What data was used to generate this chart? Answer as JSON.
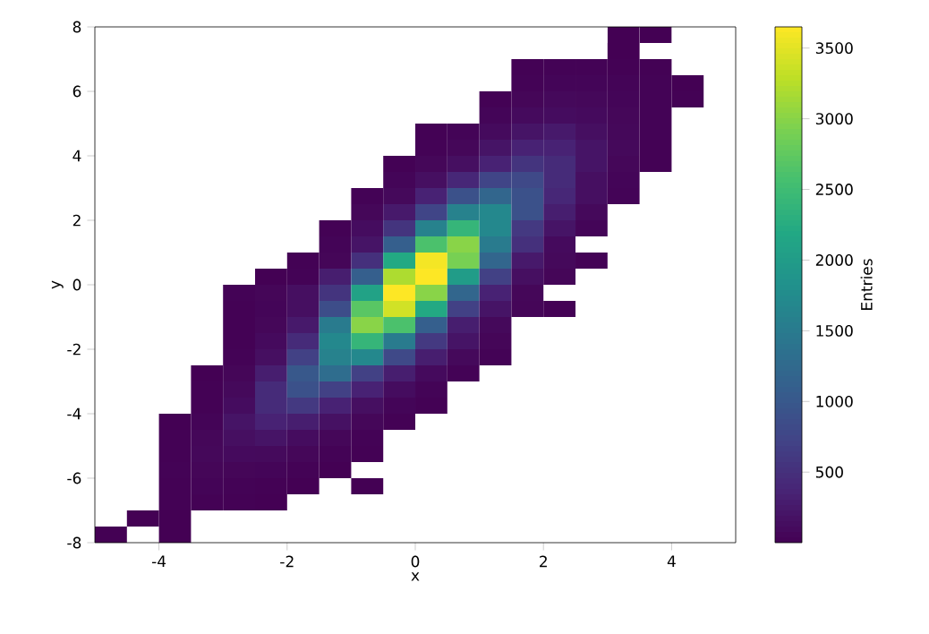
{
  "chart_data": {
    "type": "heatmap",
    "xlabel": "x",
    "ylabel": "y",
    "clabel": "Entries",
    "xlim": [
      -5,
      5
    ],
    "ylim": [
      -8,
      8
    ],
    "xticks": [
      -4,
      -2,
      0,
      2,
      4
    ],
    "yticks": [
      -8,
      -6,
      -4,
      -2,
      0,
      2,
      4,
      6,
      8
    ],
    "clim": [
      1,
      3650
    ],
    "cticks": [
      500,
      1000,
      1500,
      2000,
      2500,
      3000,
      3500
    ],
    "cells": [
      [
        null,
        null,
        null,
        null,
        null,
        null,
        null,
        null,
        null,
        null,
        null,
        null,
        null,
        null,
        null,
        null,
        3,
        2,
        null,
        null
      ],
      [
        null,
        null,
        null,
        null,
        null,
        null,
        null,
        null,
        null,
        null,
        null,
        null,
        null,
        null,
        null,
        null,
        5,
        null,
        null,
        null
      ],
      [
        null,
        null,
        null,
        null,
        null,
        null,
        null,
        null,
        null,
        null,
        null,
        null,
        null,
        10,
        20,
        20,
        15,
        10,
        null,
        null
      ],
      [
        null,
        null,
        null,
        null,
        null,
        null,
        null,
        null,
        null,
        null,
        null,
        null,
        null,
        20,
        40,
        40,
        30,
        20,
        5,
        null
      ],
      [
        null,
        null,
        null,
        null,
        null,
        null,
        null,
        null,
        null,
        null,
        null,
        null,
        10,
        50,
        80,
        70,
        40,
        25,
        8,
        null
      ],
      [
        null,
        null,
        null,
        null,
        null,
        null,
        null,
        null,
        null,
        null,
        null,
        null,
        40,
        100,
        120,
        100,
        60,
        20,
        null,
        null
      ],
      [
        null,
        null,
        null,
        null,
        null,
        null,
        null,
        null,
        null,
        null,
        10,
        30,
        100,
        200,
        250,
        150,
        70,
        20,
        null,
        null
      ],
      [
        null,
        null,
        null,
        null,
        null,
        null,
        null,
        null,
        null,
        null,
        20,
        60,
        200,
        350,
        350,
        200,
        80,
        15,
        null,
        null
      ],
      [
        null,
        null,
        null,
        null,
        null,
        null,
        null,
        null,
        null,
        10,
        60,
        150,
        350,
        550,
        450,
        200,
        60,
        10,
        null,
        null
      ],
      [
        null,
        null,
        null,
        null,
        null,
        null,
        null,
        null,
        null,
        40,
        150,
        400,
        750,
        800,
        450,
        150,
        40,
        null,
        null,
        null
      ],
      [
        null,
        null,
        null,
        null,
        null,
        null,
        null,
        null,
        20,
        80,
        350,
        900,
        1200,
        900,
        400,
        150,
        30,
        null,
        null,
        null
      ],
      [
        null,
        null,
        null,
        null,
        null,
        null,
        null,
        null,
        60,
        250,
        750,
        1600,
        1700,
        900,
        300,
        80,
        null,
        null,
        null,
        null
      ],
      [
        null,
        null,
        null,
        null,
        null,
        null,
        null,
        15,
        120,
        550,
        1600,
        2400,
        1700,
        600,
        200,
        40,
        null,
        null,
        null,
        null
      ],
      [
        null,
        null,
        null,
        null,
        null,
        null,
        null,
        30,
        200,
        1100,
        2600,
        3000,
        1500,
        500,
        100,
        null,
        null,
        null,
        null,
        null
      ],
      [
        null,
        null,
        null,
        null,
        null,
        null,
        10,
        50,
        500,
        2200,
        3600,
        2900,
        1200,
        250,
        80,
        20,
        null,
        null,
        null,
        null
      ],
      [
        null,
        null,
        null,
        null,
        null,
        5,
        20,
        300,
        1100,
        3200,
        3650,
        2000,
        700,
        150,
        50,
        null,
        null,
        null,
        null,
        null
      ],
      [
        null,
        null,
        null,
        null,
        20,
        50,
        150,
        550,
        2100,
        3650,
        3000,
        1200,
        350,
        60,
        null,
        null,
        null,
        null,
        null,
        null
      ],
      [
        null,
        null,
        null,
        null,
        15,
        40,
        150,
        850,
        2700,
        3400,
        2200,
        700,
        200,
        50,
        10,
        null,
        null,
        null,
        null,
        null
      ],
      [
        null,
        null,
        null,
        null,
        10,
        60,
        250,
        1500,
        3000,
        2600,
        1100,
        300,
        80,
        null,
        null,
        null,
        null,
        null,
        null,
        null
      ],
      [
        null,
        null,
        null,
        null,
        15,
        100,
        450,
        1700,
        2400,
        1500,
        600,
        200,
        50,
        null,
        null,
        null,
        null,
        null,
        null,
        null
      ],
      [
        null,
        null,
        null,
        null,
        20,
        150,
        700,
        1600,
        1700,
        800,
        300,
        80,
        20,
        null,
        null,
        null,
        null,
        null,
        null,
        null
      ],
      [
        null,
        null,
        null,
        5,
        50,
        300,
        1000,
        1300,
        700,
        300,
        100,
        20,
        null,
        null,
        null,
        null,
        null,
        null,
        null,
        null
      ],
      [
        null,
        null,
        null,
        10,
        80,
        450,
        900,
        700,
        350,
        120,
        30,
        null,
        null,
        null,
        null,
        null,
        null,
        null,
        null,
        null
      ],
      [
        null,
        null,
        null,
        15,
        120,
        450,
        600,
        350,
        150,
        40,
        10,
        null,
        null,
        null,
        null,
        null,
        null,
        null,
        null,
        null
      ],
      [
        null,
        null,
        3,
        30,
        200,
        350,
        300,
        170,
        60,
        10,
        null,
        null,
        null,
        null,
        null,
        null,
        null,
        null,
        null,
        null
      ],
      [
        null,
        null,
        10,
        60,
        150,
        200,
        120,
        60,
        20,
        null,
        null,
        null,
        null,
        null,
        null,
        null,
        null,
        null,
        null,
        null
      ],
      [
        null,
        null,
        15,
        70,
        100,
        90,
        60,
        25,
        8,
        null,
        null,
        null,
        null,
        null,
        null,
        null,
        null,
        null,
        null,
        null
      ],
      [
        null,
        null,
        20,
        50,
        50,
        40,
        20,
        5,
        null,
        null,
        null,
        null,
        null,
        null,
        null,
        null,
        null,
        null,
        null,
        null
      ],
      [
        null,
        null,
        15,
        30,
        20,
        15,
        5,
        null,
        1,
        null,
        null,
        null,
        null,
        null,
        null,
        null,
        null,
        null,
        null,
        null
      ],
      [
        null,
        null,
        10,
        15,
        10,
        3,
        null,
        null,
        null,
        null,
        null,
        null,
        null,
        null,
        null,
        null,
        null,
        null,
        null,
        null
      ],
      [
        null,
        2,
        5,
        null,
        null,
        null,
        null,
        null,
        null,
        null,
        null,
        null,
        null,
        null,
        null,
        null,
        null,
        null,
        null,
        null
      ],
      [
        1,
        null,
        2,
        null,
        null,
        null,
        null,
        null,
        null,
        null,
        null,
        null,
        null,
        null,
        null,
        null,
        null,
        null,
        null,
        null
      ]
    ]
  }
}
